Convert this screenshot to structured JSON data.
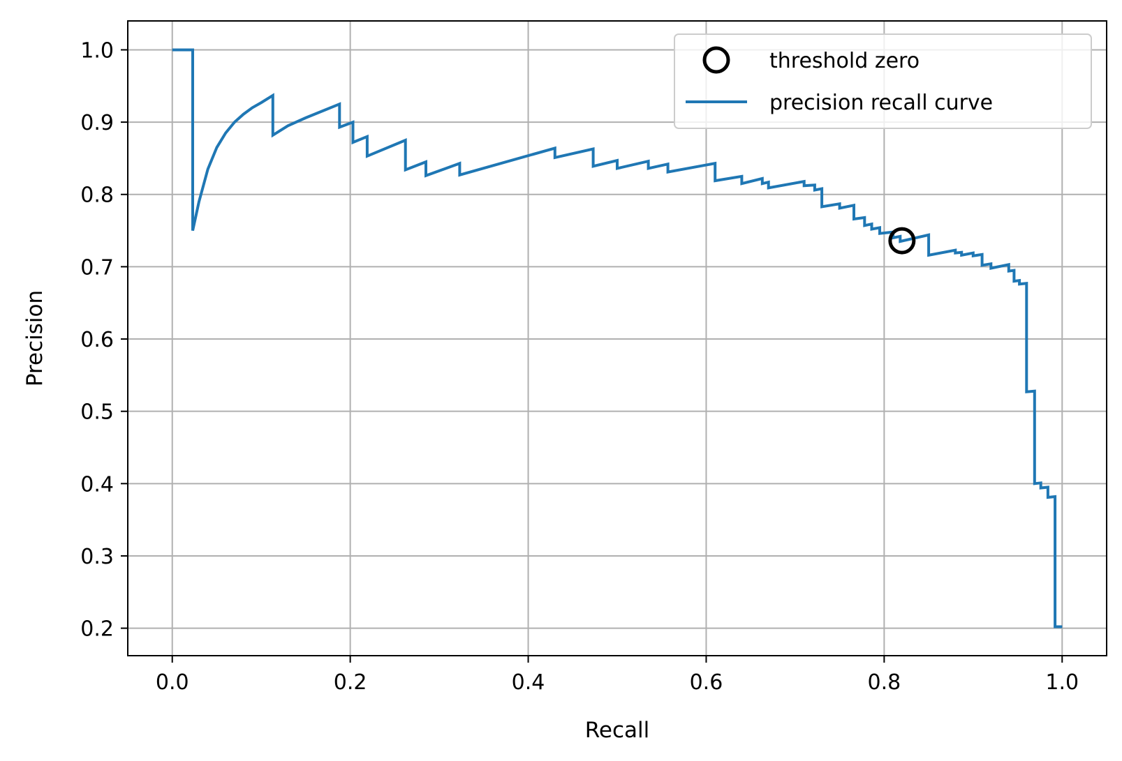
{
  "chart_data": {
    "type": "line",
    "xlabel": "Recall",
    "ylabel": "Precision",
    "xlim": [
      -0.05,
      1.05
    ],
    "ylim": [
      0.162,
      1.04
    ],
    "xticks": [
      "0.0",
      "0.2",
      "0.4",
      "0.6",
      "0.8",
      "1.0"
    ],
    "yticks": [
      "0.2",
      "0.3",
      "0.4",
      "0.5",
      "0.6",
      "0.7",
      "0.8",
      "0.9",
      "1.0"
    ],
    "grid": true,
    "legend_position": "top-right",
    "series": [
      {
        "name": "precision recall curve",
        "color": "#1f77b4",
        "points": [
          [
            0.0,
            1.0
          ],
          [
            0.023,
            1.0
          ],
          [
            0.023,
            0.75
          ],
          [
            0.03,
            0.79
          ],
          [
            0.04,
            0.835
          ],
          [
            0.05,
            0.865
          ],
          [
            0.06,
            0.885
          ],
          [
            0.07,
            0.9
          ],
          [
            0.08,
            0.911
          ],
          [
            0.09,
            0.92
          ],
          [
            0.1,
            0.927
          ],
          [
            0.113,
            0.937
          ],
          [
            0.113,
            0.882
          ],
          [
            0.13,
            0.895
          ],
          [
            0.15,
            0.906
          ],
          [
            0.17,
            0.916
          ],
          [
            0.188,
            0.925
          ],
          [
            0.188,
            0.893
          ],
          [
            0.203,
            0.9
          ],
          [
            0.203,
            0.872
          ],
          [
            0.219,
            0.88
          ],
          [
            0.219,
            0.853
          ],
          [
            0.262,
            0.875
          ],
          [
            0.262,
            0.834
          ],
          [
            0.285,
            0.845
          ],
          [
            0.285,
            0.826
          ],
          [
            0.323,
            0.843
          ],
          [
            0.323,
            0.827
          ],
          [
            0.43,
            0.864
          ],
          [
            0.43,
            0.851
          ],
          [
            0.473,
            0.863
          ],
          [
            0.473,
            0.839
          ],
          [
            0.5,
            0.847
          ],
          [
            0.5,
            0.836
          ],
          [
            0.535,
            0.846
          ],
          [
            0.535,
            0.836
          ],
          [
            0.557,
            0.842
          ],
          [
            0.557,
            0.831
          ],
          [
            0.61,
            0.843
          ],
          [
            0.61,
            0.819
          ],
          [
            0.64,
            0.825
          ],
          [
            0.64,
            0.815
          ],
          [
            0.663,
            0.822
          ],
          [
            0.663,
            0.815
          ],
          [
            0.67,
            0.817
          ],
          [
            0.67,
            0.809
          ],
          [
            0.71,
            0.818
          ],
          [
            0.71,
            0.812
          ],
          [
            0.722,
            0.813
          ],
          [
            0.722,
            0.806
          ],
          [
            0.73,
            0.808
          ],
          [
            0.73,
            0.783
          ],
          [
            0.75,
            0.787
          ],
          [
            0.75,
            0.781
          ],
          [
            0.766,
            0.785
          ],
          [
            0.766,
            0.766
          ],
          [
            0.778,
            0.768
          ],
          [
            0.778,
            0.757
          ],
          [
            0.786,
            0.759
          ],
          [
            0.786,
            0.752
          ],
          [
            0.795,
            0.754
          ],
          [
            0.795,
            0.746
          ],
          [
            0.81,
            0.748
          ],
          [
            0.81,
            0.74
          ],
          [
            0.818,
            0.742
          ],
          [
            0.818,
            0.735
          ],
          [
            0.85,
            0.744
          ],
          [
            0.85,
            0.716
          ],
          [
            0.88,
            0.723
          ],
          [
            0.88,
            0.719
          ],
          [
            0.887,
            0.72
          ],
          [
            0.887,
            0.716
          ],
          [
            0.9,
            0.719
          ],
          [
            0.9,
            0.715
          ],
          [
            0.91,
            0.717
          ],
          [
            0.91,
            0.702
          ],
          [
            0.92,
            0.704
          ],
          [
            0.92,
            0.698
          ],
          [
            0.94,
            0.703
          ],
          [
            0.94,
            0.694
          ],
          [
            0.946,
            0.695
          ],
          [
            0.946,
            0.68
          ],
          [
            0.952,
            0.681
          ],
          [
            0.952,
            0.676
          ],
          [
            0.96,
            0.677
          ],
          [
            0.96,
            0.527
          ],
          [
            0.969,
            0.528
          ],
          [
            0.969,
            0.4
          ],
          [
            0.976,
            0.401
          ],
          [
            0.976,
            0.394
          ],
          [
            0.984,
            0.395
          ],
          [
            0.984,
            0.381
          ],
          [
            0.992,
            0.382
          ],
          [
            0.992,
            0.202
          ],
          [
            1.0,
            0.202
          ]
        ]
      },
      {
        "name": "threshold zero",
        "marker": "circle",
        "color": "#000000",
        "points": [
          [
            0.82,
            0.736
          ]
        ]
      }
    ]
  }
}
